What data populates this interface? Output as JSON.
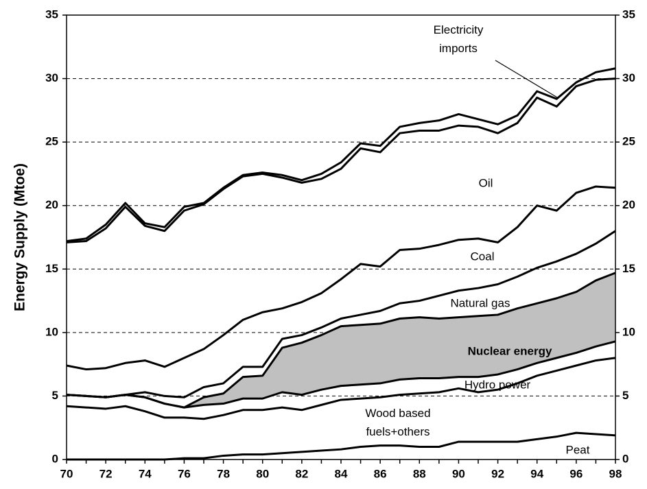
{
  "chart_data": {
    "type": "stacked-line",
    "y_label": "Energy Supply (Mtoe)",
    "categories": [
      "70",
      null,
      "72",
      null,
      "74",
      null,
      "76",
      null,
      "78",
      null,
      "80",
      null,
      "82",
      null,
      "84",
      null,
      "86",
      null,
      "88",
      null,
      "90",
      null,
      "92",
      null,
      "94",
      null,
      "96",
      null,
      "98"
    ],
    "ylim": [
      0,
      35
    ],
    "yticks": [
      0,
      5,
      10,
      15,
      20,
      25,
      30,
      35
    ],
    "y2lim": [
      0,
      35
    ],
    "y2ticks": [
      0,
      5,
      10,
      15,
      20,
      25,
      30,
      35
    ],
    "grid": true,
    "series": [
      {
        "name": "Peat",
        "color": "#000000",
        "values": [
          0,
          0,
          0,
          0,
          0,
          0,
          0.1,
          0.1,
          0.3,
          0.4,
          0.4,
          0.5,
          0.6,
          0.7,
          0.8,
          1.0,
          1.1,
          1.1,
          1.0,
          1.0,
          1.4,
          1.4,
          1.4,
          1.4,
          1.6,
          1.8,
          2.1,
          2.0,
          1.9
        ]
      },
      {
        "name": "Wood based\nfuels+others",
        "color": "#000000",
        "values": [
          4.2,
          4.1,
          4.0,
          4.2,
          3.8,
          3.3,
          3.2,
          3.1,
          3.2,
          3.5,
          3.5,
          3.6,
          3.3,
          3.6,
          3.9,
          3.8,
          3.8,
          4.0,
          4.2,
          4.3,
          4.2,
          3.9,
          4.1,
          4.6,
          5.0,
          5.2,
          5.3,
          5.8,
          6.1
        ]
      },
      {
        "name": "Hydro power",
        "color": "#000000",
        "values": [
          0.9,
          0.9,
          0.9,
          0.9,
          1.1,
          1.1,
          0.8,
          1.1,
          0.9,
          0.9,
          0.9,
          1.2,
          1.2,
          1.2,
          1.1,
          1.1,
          1.1,
          1.2,
          1.2,
          1.1,
          0.9,
          1.2,
          1.2,
          1.1,
          1.0,
          1.0,
          1.0,
          1.1,
          1.3
        ]
      },
      {
        "name": "Nuclear energy",
        "color": "#000000",
        "fill": "#c0c0c0",
        "values": [
          0,
          0,
          0,
          0,
          0,
          0,
          0,
          0.6,
          0.8,
          1.7,
          1.8,
          3.5,
          4.1,
          4.3,
          4.7,
          4.7,
          4.7,
          4.8,
          4.8,
          4.7,
          4.7,
          4.8,
          4.7,
          4.8,
          4.7,
          4.7,
          4.8,
          5.2,
          5.4
        ]
      },
      {
        "name": "Natural gas",
        "color": "#000000",
        "values": [
          0,
          0,
          0,
          0,
          0.4,
          0.6,
          0.8,
          0.8,
          0.8,
          0.8,
          0.7,
          0.7,
          0.6,
          0.6,
          0.6,
          0.8,
          1.0,
          1.2,
          1.3,
          1.8,
          2.1,
          2.2,
          2.4,
          2.5,
          2.8,
          2.9,
          3.0,
          2.9,
          3.3
        ]
      },
      {
        "name": "Coal",
        "color": "#000000",
        "values": [
          2.3,
          2.1,
          2.3,
          2.5,
          2.5,
          2.3,
          3.1,
          3.0,
          3.8,
          3.7,
          4.3,
          2.4,
          2.6,
          2.7,
          3.1,
          4.0,
          3.5,
          4.2,
          4.1,
          4.0,
          4.0,
          3.9,
          3.3,
          3.9,
          4.9,
          4.0,
          4.8,
          4.5,
          3.4
        ]
      },
      {
        "name": "Oil",
        "color": "#000000",
        "values": [
          9.7,
          10.1,
          11.0,
          12.3,
          10.6,
          10.7,
          11.6,
          11.4,
          11.5,
          11.3,
          10.9,
          10.3,
          9.4,
          9.0,
          8.7,
          9.1,
          9.0,
          9.2,
          9.3,
          9.0,
          9.0,
          8.8,
          8.6,
          8.2,
          8.5,
          8.2,
          8.4,
          8.4,
          8.6
        ]
      },
      {
        "name": "Electricity\nimports",
        "color": "#000000",
        "values": [
          0.1,
          0.2,
          0.3,
          0.3,
          0.2,
          0.3,
          0.3,
          0.1,
          0.1,
          0.1,
          0.1,
          0.2,
          0.2,
          0.4,
          0.5,
          0.4,
          0.5,
          0.5,
          0.6,
          0.8,
          0.9,
          0.6,
          0.7,
          0.6,
          0.5,
          0.6,
          0.3,
          0.6,
          0.8
        ]
      }
    ]
  }
}
